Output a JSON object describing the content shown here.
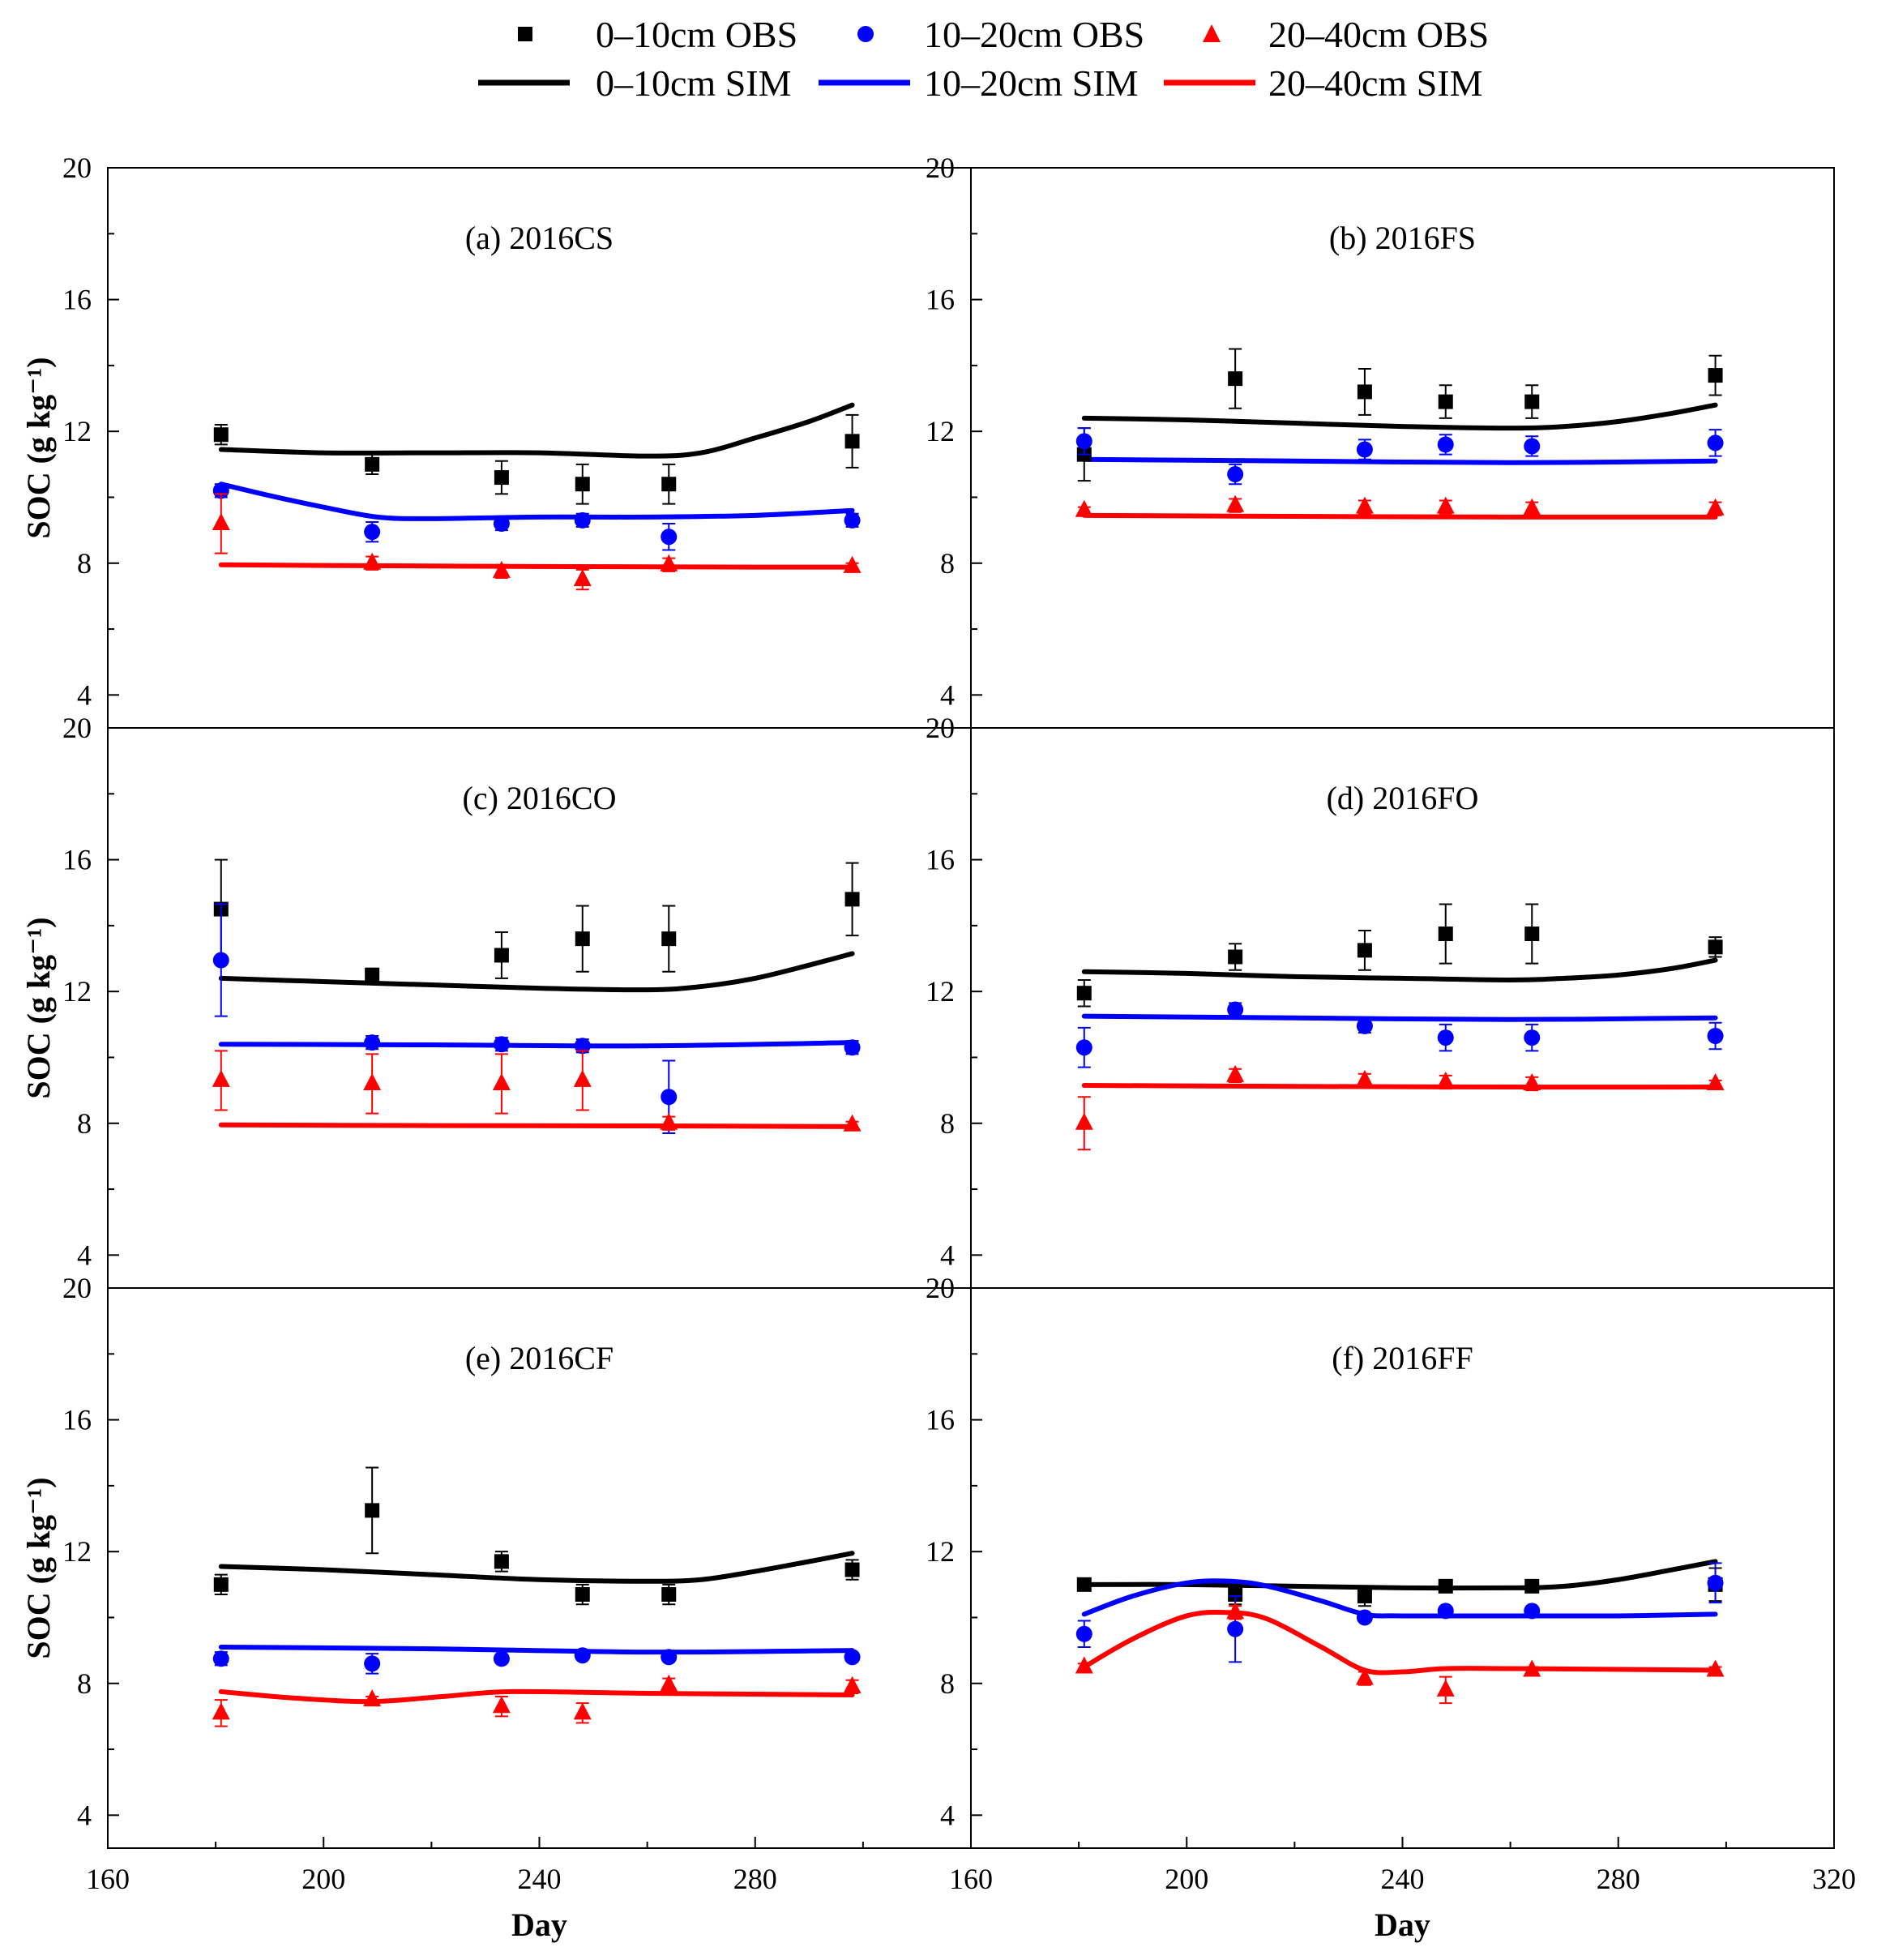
{
  "legend": {
    "items": [
      {
        "key": "obs0",
        "label": "0–10cm OBS",
        "marker": "square",
        "color": "#000000"
      },
      {
        "key": "obs1",
        "label": "10–20cm OBS",
        "marker": "circle",
        "color": "#0000ff"
      },
      {
        "key": "obs2",
        "label": "20–40cm OBS",
        "marker": "triangle",
        "color": "#ff0000"
      },
      {
        "key": "sim0",
        "label": "0–10cm SIM",
        "marker": "line",
        "color": "#000000"
      },
      {
        "key": "sim1",
        "label": "10–20cm SIM",
        "marker": "line",
        "color": "#0000ff"
      },
      {
        "key": "sim2",
        "label": "20–40cm SIM",
        "marker": "line",
        "color": "#ff0000"
      }
    ]
  },
  "chart_data": [
    {
      "type": "scatter",
      "title": "(a) 2016CS",
      "xlabel": "",
      "ylabel": "SOC (g kg⁻¹)",
      "xlim": [
        160,
        320
      ],
      "ylim": [
        3,
        20
      ],
      "xticks": [],
      "yticks": [
        4,
        8,
        12,
        16,
        20
      ],
      "series": [
        {
          "name": "0–10cm OBS",
          "color": "#000000",
          "marker": "square",
          "x": [
            181,
            209,
            233,
            248,
            264,
            298
          ],
          "y": [
            11.9,
            11.0,
            10.6,
            10.4,
            10.4,
            11.7
          ],
          "err": [
            0.3,
            0.3,
            0.5,
            0.6,
            0.6,
            0.8
          ]
        },
        {
          "name": "10–20cm OBS",
          "color": "#0000ff",
          "marker": "circle",
          "x": [
            181,
            209,
            233,
            248,
            264,
            298
          ],
          "y": [
            10.2,
            8.95,
            9.2,
            9.3,
            8.8,
            9.3
          ],
          "err": [
            0.2,
            0.3,
            0.2,
            0.2,
            0.4,
            0.2
          ]
        },
        {
          "name": "20–40cm OBS",
          "color": "#ff0000",
          "marker": "triangle",
          "x": [
            181,
            209,
            233,
            248,
            264,
            298
          ],
          "y": [
            9.2,
            8.0,
            7.75,
            7.5,
            7.95,
            7.9
          ],
          "err": [
            0.9,
            0.2,
            0.2,
            0.3,
            0.2,
            0.1
          ]
        },
        {
          "name": "0–10cm SIM",
          "color": "#000000",
          "marker": "line",
          "x": [
            181,
            200,
            220,
            240,
            260,
            270,
            280,
            290,
            298
          ],
          "y": [
            11.45,
            11.35,
            11.35,
            11.35,
            11.25,
            11.35,
            11.8,
            12.3,
            12.8
          ]
        },
        {
          "name": "10–20cm SIM",
          "color": "#0000ff",
          "marker": "line",
          "x": [
            181,
            190,
            200,
            210,
            220,
            240,
            260,
            280,
            298
          ],
          "y": [
            10.4,
            10.05,
            9.7,
            9.4,
            9.35,
            9.4,
            9.4,
            9.45,
            9.6
          ]
        },
        {
          "name": "20–40cm SIM",
          "color": "#ff0000",
          "marker": "line",
          "x": [
            181,
            200,
            240,
            280,
            298
          ],
          "y": [
            7.95,
            7.93,
            7.9,
            7.88,
            7.88
          ]
        }
      ]
    },
    {
      "type": "scatter",
      "title": "(b) 2016FS",
      "xlabel": "",
      "ylabel": "",
      "xlim": [
        160,
        320
      ],
      "ylim": [
        3,
        20
      ],
      "xticks": [],
      "yticks": [
        4,
        8,
        12,
        16,
        20
      ],
      "series": [
        {
          "name": "0–10cm OBS",
          "color": "#000000",
          "marker": "square",
          "x": [
            181,
            209,
            233,
            248,
            264,
            298
          ],
          "y": [
            11.3,
            13.6,
            13.2,
            12.9,
            12.9,
            13.7
          ],
          "err": [
            0.8,
            0.9,
            0.7,
            0.5,
            0.5,
            0.6
          ]
        },
        {
          "name": "10–20cm OBS",
          "color": "#0000ff",
          "marker": "circle",
          "x": [
            181,
            209,
            233,
            248,
            264,
            298
          ],
          "y": [
            11.7,
            10.7,
            11.45,
            11.6,
            11.55,
            11.65
          ],
          "err": [
            0.4,
            0.3,
            0.3,
            0.3,
            0.3,
            0.4
          ]
        },
        {
          "name": "20–40cm OBS",
          "color": "#ff0000",
          "marker": "triangle",
          "x": [
            181,
            209,
            233,
            248,
            264,
            298
          ],
          "y": [
            9.6,
            9.75,
            9.7,
            9.7,
            9.65,
            9.65
          ],
          "err": [
            0.1,
            0.2,
            0.2,
            0.2,
            0.2,
            0.2
          ]
        },
        {
          "name": "0–10cm SIM",
          "color": "#000000",
          "marker": "line",
          "x": [
            181,
            200,
            220,
            240,
            260,
            270,
            280,
            290,
            298
          ],
          "y": [
            12.4,
            12.35,
            12.25,
            12.15,
            12.1,
            12.15,
            12.3,
            12.55,
            12.8
          ]
        },
        {
          "name": "10–20cm SIM",
          "color": "#0000ff",
          "marker": "line",
          "x": [
            181,
            220,
            260,
            298
          ],
          "y": [
            11.15,
            11.1,
            11.05,
            11.1
          ]
        },
        {
          "name": "20–40cm SIM",
          "color": "#ff0000",
          "marker": "line",
          "x": [
            181,
            220,
            260,
            298
          ],
          "y": [
            9.45,
            9.42,
            9.4,
            9.4
          ]
        }
      ]
    },
    {
      "type": "scatter",
      "title": "(c) 2016CO",
      "xlabel": "",
      "ylabel": "SOC (g kg⁻¹)",
      "xlim": [
        160,
        320
      ],
      "ylim": [
        3,
        20
      ],
      "xticks": [],
      "yticks": [
        4,
        8,
        12,
        16,
        20
      ],
      "series": [
        {
          "name": "0–10cm OBS",
          "color": "#000000",
          "marker": "square",
          "x": [
            181,
            209,
            233,
            248,
            264,
            298
          ],
          "y": [
            14.5,
            12.5,
            13.1,
            13.6,
            13.6,
            14.8
          ],
          "err": [
            1.5,
            0.2,
            0.7,
            1.0,
            1.0,
            1.1
          ]
        },
        {
          "name": "10–20cm OBS",
          "color": "#0000ff",
          "marker": "circle",
          "x": [
            181,
            209,
            233,
            248,
            264,
            298
          ],
          "y": [
            12.95,
            10.45,
            10.4,
            10.35,
            8.8,
            10.3
          ],
          "err": [
            1.7,
            0.2,
            0.2,
            0.2,
            1.1,
            0.2
          ]
        },
        {
          "name": "20–40cm OBS",
          "color": "#ff0000",
          "marker": "triangle",
          "x": [
            181,
            209,
            233,
            248,
            264,
            298
          ],
          "y": [
            9.3,
            9.2,
            9.2,
            9.3,
            8.0,
            7.95
          ],
          "err": [
            0.9,
            0.9,
            0.9,
            0.9,
            0.2,
            0.1
          ]
        },
        {
          "name": "0–10cm SIM",
          "color": "#000000",
          "marker": "line",
          "x": [
            181,
            200,
            220,
            240,
            260,
            270,
            280,
            290,
            298
          ],
          "y": [
            12.4,
            12.3,
            12.2,
            12.1,
            12.05,
            12.15,
            12.4,
            12.8,
            13.15
          ]
        },
        {
          "name": "10–20cm SIM",
          "color": "#0000ff",
          "marker": "line",
          "x": [
            181,
            220,
            260,
            298
          ],
          "y": [
            10.4,
            10.38,
            10.35,
            10.45
          ]
        },
        {
          "name": "20–40cm SIM",
          "color": "#ff0000",
          "marker": "line",
          "x": [
            181,
            220,
            260,
            298
          ],
          "y": [
            7.95,
            7.93,
            7.92,
            7.9
          ]
        }
      ]
    },
    {
      "type": "scatter",
      "title": "(d) 2016FO",
      "xlabel": "",
      "ylabel": "",
      "xlim": [
        160,
        320
      ],
      "ylim": [
        3,
        20
      ],
      "xticks": [],
      "yticks": [
        4,
        8,
        12,
        16,
        20
      ],
      "series": [
        {
          "name": "0–10cm OBS",
          "color": "#000000",
          "marker": "square",
          "x": [
            181,
            209,
            233,
            248,
            264,
            298
          ],
          "y": [
            11.95,
            13.05,
            13.25,
            13.75,
            13.75,
            13.35
          ],
          "err": [
            0.4,
            0.4,
            0.6,
            0.9,
            0.9,
            0.3
          ]
        },
        {
          "name": "10–20cm OBS",
          "color": "#0000ff",
          "marker": "circle",
          "x": [
            181,
            209,
            233,
            248,
            264,
            298
          ],
          "y": [
            10.3,
            11.45,
            10.95,
            10.6,
            10.6,
            10.65
          ],
          "err": [
            0.6,
            0.2,
            0.2,
            0.4,
            0.4,
            0.4
          ]
        },
        {
          "name": "20–40cm OBS",
          "color": "#ff0000",
          "marker": "triangle",
          "x": [
            181,
            209,
            233,
            248,
            264,
            298
          ],
          "y": [
            8.0,
            9.45,
            9.3,
            9.25,
            9.2,
            9.2
          ],
          "err": [
            0.8,
            0.2,
            0.2,
            0.2,
            0.2,
            0.1
          ]
        },
        {
          "name": "0–10cm SIM",
          "color": "#000000",
          "marker": "line",
          "x": [
            181,
            200,
            220,
            240,
            260,
            270,
            280,
            290,
            298
          ],
          "y": [
            12.6,
            12.55,
            12.45,
            12.4,
            12.35,
            12.4,
            12.5,
            12.7,
            12.95
          ]
        },
        {
          "name": "10–20cm SIM",
          "color": "#0000ff",
          "marker": "line",
          "x": [
            181,
            220,
            260,
            298
          ],
          "y": [
            11.25,
            11.2,
            11.15,
            11.2
          ]
        },
        {
          "name": "20–40cm SIM",
          "color": "#ff0000",
          "marker": "line",
          "x": [
            181,
            220,
            260,
            298
          ],
          "y": [
            9.15,
            9.12,
            9.1,
            9.1
          ]
        }
      ]
    },
    {
      "type": "scatter",
      "title": "(e) 2016CF",
      "xlabel": "Day",
      "ylabel": "SOC (g kg⁻¹)",
      "xlim": [
        160,
        320
      ],
      "ylim": [
        3,
        20
      ],
      "xticks": [
        160,
        200,
        240,
        280
      ],
      "yticks": [
        4,
        8,
        12,
        16,
        20
      ],
      "series": [
        {
          "name": "0–10cm OBS",
          "color": "#000000",
          "marker": "square",
          "x": [
            181,
            209,
            233,
            248,
            264,
            298
          ],
          "y": [
            11.0,
            13.25,
            11.7,
            10.7,
            10.7,
            11.45
          ],
          "err": [
            0.3,
            1.3,
            0.3,
            0.3,
            0.3,
            0.3
          ]
        },
        {
          "name": "10–20cm OBS",
          "color": "#0000ff",
          "marker": "circle",
          "x": [
            181,
            209,
            233,
            248,
            264,
            298
          ],
          "y": [
            8.75,
            8.6,
            8.75,
            8.85,
            8.8,
            8.8
          ],
          "err": [
            0.2,
            0.3,
            0.1,
            0.1,
            0.1,
            0.1
          ]
        },
        {
          "name": "20–40cm OBS",
          "color": "#ff0000",
          "marker": "triangle",
          "x": [
            181,
            209,
            233,
            248,
            264,
            298
          ],
          "y": [
            7.1,
            7.5,
            7.3,
            7.1,
            7.95,
            7.9
          ],
          "err": [
            0.4,
            0.1,
            0.3,
            0.3,
            0.2,
            0.2
          ]
        },
        {
          "name": "0–10cm SIM",
          "color": "#000000",
          "marker": "line",
          "x": [
            181,
            200,
            220,
            240,
            260,
            270,
            280,
            290,
            298
          ],
          "y": [
            11.55,
            11.45,
            11.3,
            11.15,
            11.1,
            11.15,
            11.4,
            11.7,
            11.95
          ]
        },
        {
          "name": "10–20cm SIM",
          "color": "#0000ff",
          "marker": "line",
          "x": [
            181,
            220,
            260,
            298
          ],
          "y": [
            9.1,
            9.05,
            8.95,
            9.0
          ]
        },
        {
          "name": "20–40cm SIM",
          "color": "#ff0000",
          "marker": "line",
          "x": [
            181,
            195,
            209,
            222,
            235,
            260,
            298
          ],
          "y": [
            7.75,
            7.55,
            7.45,
            7.6,
            7.75,
            7.7,
            7.65
          ]
        }
      ]
    },
    {
      "type": "scatter",
      "title": "(f) 2016FF",
      "xlabel": "Day",
      "ylabel": "",
      "xlim": [
        160,
        320
      ],
      "ylim": [
        3,
        20
      ],
      "xticks": [
        160,
        200,
        240,
        280,
        320
      ],
      "yticks": [
        4,
        8,
        12,
        16,
        20
      ],
      "series": [
        {
          "name": "0–10cm OBS",
          "color": "#000000",
          "marker": "square",
          "x": [
            181,
            209,
            233,
            248,
            264,
            298
          ],
          "y": [
            11.0,
            10.7,
            10.65,
            10.95,
            10.95,
            11.0
          ],
          "err": [
            0.1,
            0.3,
            0.3,
            0.1,
            0.1,
            0.5
          ]
        },
        {
          "name": "10–20cm OBS",
          "color": "#0000ff",
          "marker": "circle",
          "x": [
            181,
            209,
            233,
            248,
            264,
            298
          ],
          "y": [
            9.5,
            9.65,
            10.0,
            10.2,
            10.2,
            11.05
          ],
          "err": [
            0.4,
            1.0,
            0.1,
            0.1,
            0.1,
            0.6
          ]
        },
        {
          "name": "20–40cm OBS",
          "color": "#ff0000",
          "marker": "triangle",
          "x": [
            181,
            209,
            233,
            248,
            264,
            298
          ],
          "y": [
            8.5,
            10.15,
            8.15,
            7.8,
            8.4,
            8.4
          ],
          "err": [
            0.1,
            0.2,
            0.2,
            0.4,
            0.1,
            0.1
          ]
        },
        {
          "name": "0–10cm SIM",
          "color": "#000000",
          "marker": "line",
          "x": [
            181,
            200,
            220,
            240,
            260,
            270,
            280,
            290,
            298
          ],
          "y": [
            11.0,
            11.0,
            10.95,
            10.9,
            10.9,
            10.95,
            11.15,
            11.45,
            11.7
          ]
        },
        {
          "name": "10–20cm SIM",
          "color": "#0000ff",
          "marker": "line",
          "x": [
            181,
            190,
            200,
            208,
            215,
            225,
            233,
            240,
            260,
            280,
            298
          ],
          "y": [
            10.1,
            10.65,
            11.05,
            11.1,
            10.95,
            10.5,
            10.1,
            10.05,
            10.05,
            10.05,
            10.1
          ]
        },
        {
          "name": "20–40cm SIM",
          "color": "#ff0000",
          "marker": "line",
          "x": [
            181,
            190,
            200,
            208,
            215,
            225,
            233,
            240,
            248,
            260,
            298
          ],
          "y": [
            8.5,
            9.35,
            10.05,
            10.15,
            9.95,
            9.1,
            8.4,
            8.35,
            8.45,
            8.45,
            8.4
          ]
        }
      ]
    }
  ]
}
